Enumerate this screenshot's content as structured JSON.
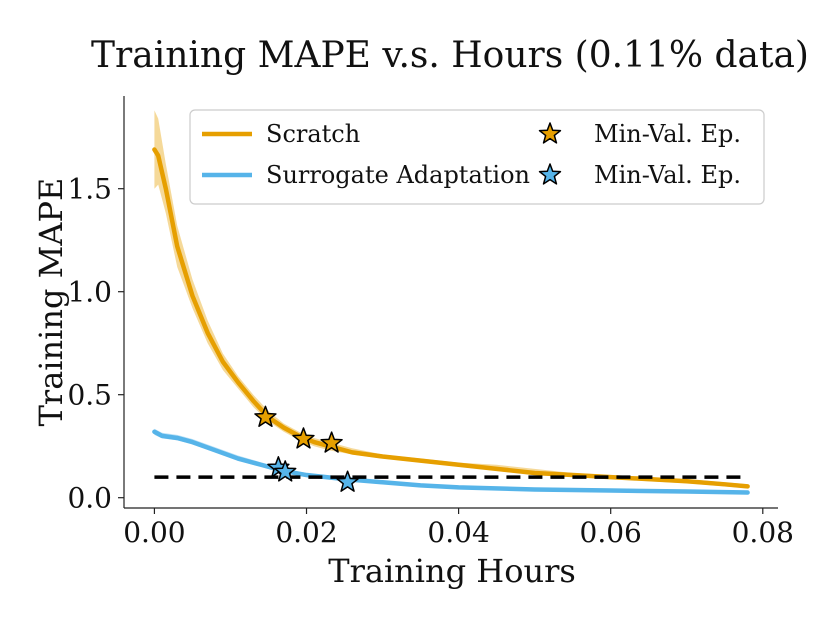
{
  "chart_data": {
    "type": "line",
    "title": "Training MAPE v.s. Hours (0.11% data)",
    "xlabel": "Training Hours",
    "ylabel": "Training MAPE",
    "xlim": [
      -0.004,
      0.082
    ],
    "ylim": [
      -0.05,
      1.95
    ],
    "xticks": [
      0.0,
      0.02,
      0.04,
      0.06,
      0.08
    ],
    "xtick_labels": [
      "0.00",
      "0.02",
      "0.04",
      "0.06",
      "0.08"
    ],
    "yticks": [
      0.0,
      0.5,
      1.0,
      1.5
    ],
    "ytick_labels": [
      "0.0",
      "0.5",
      "1.0",
      "1.5"
    ],
    "reference_line": {
      "y": 0.1,
      "x_range": [
        0.0,
        0.078
      ],
      "style": "dashed",
      "color": "#000000"
    },
    "legend_position": "top-right",
    "series": [
      {
        "name": "Scratch",
        "color": "#E69F00",
        "x": [
          0.0,
          0.0005,
          0.0015,
          0.003,
          0.005,
          0.007,
          0.009,
          0.011,
          0.013,
          0.015,
          0.017,
          0.019,
          0.021,
          0.023,
          0.026,
          0.03,
          0.035,
          0.04,
          0.045,
          0.05,
          0.055,
          0.06,
          0.065,
          0.07,
          0.075,
          0.078
        ],
        "y": [
          1.69,
          1.66,
          1.5,
          1.22,
          0.98,
          0.8,
          0.66,
          0.56,
          0.47,
          0.39,
          0.34,
          0.3,
          0.27,
          0.25,
          0.22,
          0.2,
          0.18,
          0.16,
          0.14,
          0.12,
          0.11,
          0.1,
          0.09,
          0.08,
          0.065,
          0.055
        ],
        "band_upper": [
          1.88,
          1.84,
          1.62,
          1.32,
          1.06,
          0.86,
          0.7,
          0.59,
          0.5,
          0.42,
          0.36,
          0.32,
          0.29,
          0.27,
          0.24,
          0.21,
          0.19,
          0.17,
          0.16,
          0.14,
          0.12,
          0.11,
          0.1,
          0.09,
          0.075,
          0.065
        ],
        "band_lower": [
          1.5,
          1.52,
          1.38,
          1.12,
          0.92,
          0.75,
          0.62,
          0.53,
          0.44,
          0.37,
          0.32,
          0.28,
          0.25,
          0.23,
          0.21,
          0.19,
          0.17,
          0.15,
          0.13,
          0.11,
          0.1,
          0.09,
          0.08,
          0.07,
          0.055,
          0.045
        ],
        "markers": [
          {
            "x": 0.0146,
            "y": 0.39
          },
          {
            "x": 0.0196,
            "y": 0.285
          },
          {
            "x": 0.0233,
            "y": 0.265
          }
        ]
      },
      {
        "name": "Surrogate Adaptation",
        "color": "#56B4E9",
        "x": [
          0.0,
          0.001,
          0.003,
          0.005,
          0.008,
          0.011,
          0.014,
          0.017,
          0.02,
          0.025,
          0.03,
          0.035,
          0.04,
          0.05,
          0.06,
          0.07,
          0.078
        ],
        "y": [
          0.32,
          0.3,
          0.29,
          0.27,
          0.23,
          0.19,
          0.16,
          0.13,
          0.11,
          0.09,
          0.075,
          0.06,
          0.05,
          0.04,
          0.035,
          0.03,
          0.025
        ],
        "band_upper": [
          0.335,
          0.315,
          0.305,
          0.285,
          0.245,
          0.205,
          0.172,
          0.142,
          0.12,
          0.098,
          0.082,
          0.067,
          0.056,
          0.045,
          0.04,
          0.035,
          0.03
        ],
        "band_lower": [
          0.305,
          0.288,
          0.278,
          0.258,
          0.218,
          0.178,
          0.15,
          0.12,
          0.1,
          0.082,
          0.068,
          0.054,
          0.045,
          0.035,
          0.03,
          0.025,
          0.02
        ],
        "markers": [
          {
            "x": 0.0163,
            "y": 0.145
          },
          {
            "x": 0.0172,
            "y": 0.125
          },
          {
            "x": 0.0254,
            "y": 0.075
          }
        ]
      }
    ],
    "legend": [
      {
        "label": "Scratch",
        "kind": "line",
        "color": "#E69F00"
      },
      {
        "label": "Min-Val. Ep.",
        "kind": "star",
        "color": "#E69F00"
      },
      {
        "label": "Surrogate Adaptation",
        "kind": "line",
        "color": "#56B4E9"
      },
      {
        "label": "Min-Val. Ep.",
        "kind": "star",
        "color": "#56B4E9"
      }
    ]
  }
}
